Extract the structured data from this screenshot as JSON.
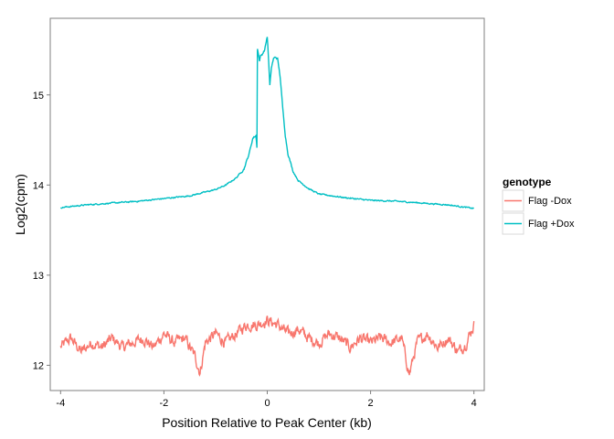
{
  "chart_data": {
    "type": "line",
    "title": "",
    "xlabel": "Position Relative to Peak Center (kb)",
    "ylabel": "Log2(cpm)",
    "xlim": [
      -4.2,
      4.2
    ],
    "ylim": [
      11.72,
      15.85
    ],
    "x_ticks": [
      -4,
      -2,
      0,
      2,
      4
    ],
    "x_tick_labels": [
      "-4",
      "-2",
      "0",
      "2",
      "4"
    ],
    "y_ticks": [
      12,
      13,
      14,
      15
    ],
    "y_tick_labels": [
      "12",
      "13",
      "14",
      "15"
    ],
    "grid": false,
    "legend": {
      "title": "genotype",
      "position": "right"
    },
    "series": [
      {
        "name": "Flag -Dox",
        "color": "#F8766D",
        "x": [
          -4.0,
          -3.8,
          -3.6,
          -3.4,
          -3.2,
          -3.0,
          -2.8,
          -2.6,
          -2.4,
          -2.2,
          -2.0,
          -1.8,
          -1.6,
          -1.4,
          -1.3,
          -1.2,
          -1.0,
          -0.8,
          -0.6,
          -0.4,
          -0.2,
          0.0,
          0.2,
          0.4,
          0.6,
          0.8,
          1.0,
          1.2,
          1.4,
          1.6,
          1.8,
          2.0,
          2.2,
          2.4,
          2.6,
          2.75,
          2.9,
          3.1,
          3.3,
          3.5,
          3.7,
          3.85,
          4.0
        ],
        "y": [
          12.2,
          12.3,
          12.15,
          12.25,
          12.2,
          12.3,
          12.2,
          12.25,
          12.3,
          12.2,
          12.35,
          12.25,
          12.3,
          12.1,
          11.92,
          12.25,
          12.35,
          12.25,
          12.35,
          12.45,
          12.45,
          12.5,
          12.45,
          12.35,
          12.4,
          12.3,
          12.25,
          12.35,
          12.3,
          12.2,
          12.3,
          12.25,
          12.3,
          12.25,
          12.3,
          11.9,
          12.25,
          12.35,
          12.2,
          12.3,
          12.15,
          12.25,
          12.45
        ]
      },
      {
        "name": "Flag +Dox",
        "color": "#00BFC4",
        "x": [
          -4.0,
          -3.5,
          -3.0,
          -2.5,
          -2.0,
          -1.5,
          -1.0,
          -0.8,
          -0.6,
          -0.45,
          -0.35,
          -0.28,
          -0.22,
          -0.2,
          -0.19,
          -0.17,
          -0.15,
          -0.13,
          -0.1,
          -0.05,
          0.0,
          0.02,
          0.05,
          0.08,
          0.12,
          0.16,
          0.2,
          0.25,
          0.3,
          0.35,
          0.4,
          0.5,
          0.6,
          0.8,
          1.0,
          1.5,
          2.0,
          2.5,
          3.0,
          3.5,
          4.0
        ],
        "y": [
          13.75,
          13.78,
          13.8,
          13.82,
          13.85,
          13.88,
          13.95,
          14.0,
          14.08,
          14.18,
          14.35,
          14.52,
          14.55,
          14.42,
          15.52,
          15.45,
          15.38,
          15.43,
          15.45,
          15.5,
          15.65,
          15.45,
          15.1,
          15.3,
          15.4,
          15.42,
          15.4,
          15.2,
          14.85,
          14.55,
          14.35,
          14.15,
          14.05,
          13.96,
          13.9,
          13.86,
          13.83,
          13.82,
          13.8,
          13.78,
          13.74
        ]
      }
    ]
  }
}
